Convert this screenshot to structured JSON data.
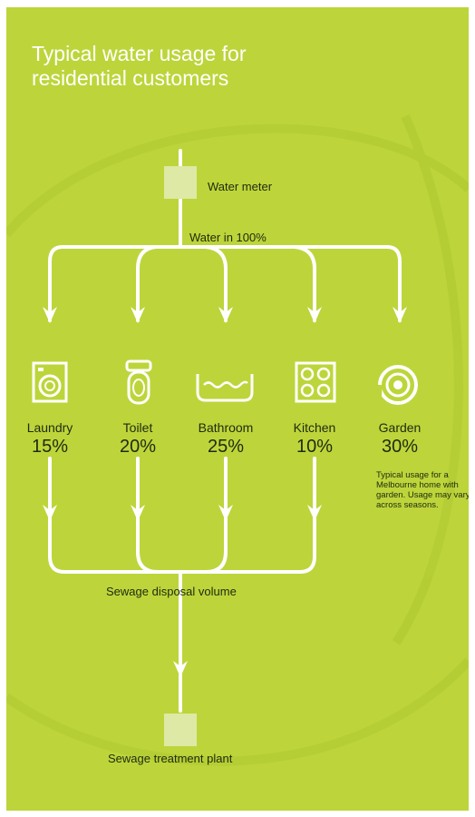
{
  "title": "Typical water usage for residential customers",
  "water_meter_label": "Water meter",
  "water_in_label": "Water in 100%",
  "categories": [
    {
      "name": "Laundry",
      "percent": "15%",
      "icon": "washing-machine-icon"
    },
    {
      "name": "Toilet",
      "percent": "20%",
      "icon": "toilet-icon"
    },
    {
      "name": "Bathroom",
      "percent": "25%",
      "icon": "bathtub-icon"
    },
    {
      "name": "Kitchen",
      "percent": "10%",
      "icon": "stove-icon"
    },
    {
      "name": "Garden",
      "percent": "30%",
      "icon": "hose-reel-icon"
    }
  ],
  "garden_note": "Typical usage for a Melbourne home with garden. Usage may vary across seasons.",
  "sewage_label": "Sewage disposal volume",
  "treatment_label": "Sewage treatment plant",
  "colors": {
    "background": "#bdd53a",
    "lines": "#ffffff",
    "box": "#dde9a4",
    "text_dark": "#1f2a10"
  }
}
